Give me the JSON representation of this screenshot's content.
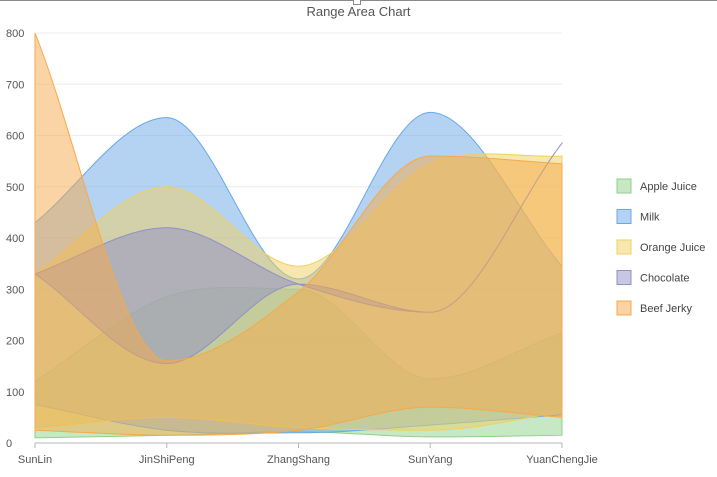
{
  "chart_data": {
    "type": "area",
    "subtype": "range-area",
    "title": "Range Area Chart",
    "categories": [
      "SunLin",
      "JinShiPeng",
      "ZhangShang",
      "SunYang",
      "YuanChengJie"
    ],
    "ylim": [
      0,
      800
    ],
    "yticks": [
      0,
      100,
      200,
      300,
      400,
      500,
      600,
      700,
      800
    ],
    "grid": true,
    "legend_position": "right",
    "series": [
      {
        "name": "Apple Juice",
        "color": "#8fd18a",
        "low": [
          10,
          15,
          22,
          12,
          15
        ],
        "high": [
          120,
          285,
          300,
          125,
          215
        ]
      },
      {
        "name": "Milk",
        "color": "#6aa8e8",
        "low": [
          75,
          25,
          20,
          35,
          55
        ],
        "high": [
          430,
          635,
          320,
          645,
          345
        ]
      },
      {
        "name": "Orange Juice",
        "color": "#f0d060",
        "low": [
          30,
          50,
          30,
          25,
          60
        ],
        "high": [
          330,
          500,
          345,
          545,
          560
        ]
      },
      {
        "name": "Chocolate",
        "color": "#9090c8",
        "low": [
          330,
          155,
          310,
          255,
          585
        ],
        "high": [
          330,
          420,
          310,
          255,
          585
        ]
      },
      {
        "name": "Beef Jerky",
        "color": "#f5a94a",
        "low": [
          25,
          15,
          25,
          70,
          50
        ],
        "high": [
          800,
          160,
          295,
          560,
          545
        ]
      }
    ]
  }
}
